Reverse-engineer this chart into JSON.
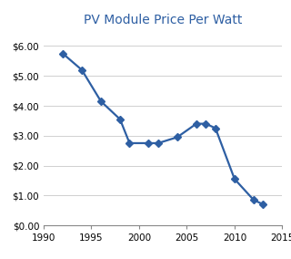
{
  "years": [
    1992,
    1994,
    1996,
    1998,
    1999,
    2001,
    2002,
    2004,
    2006,
    2007,
    2008,
    2010,
    2012,
    2013
  ],
  "prices": [
    5.75,
    5.2,
    4.15,
    3.55,
    2.75,
    2.75,
    2.75,
    2.95,
    3.4,
    3.4,
    3.25,
    1.55,
    0.85,
    0.7
  ],
  "title": "PV Module Price Per Watt",
  "title_color": "#2E5FA3",
  "title_fontsize": 10,
  "line_color": "#2E5FA3",
  "marker": "D",
  "marker_size": 4,
  "xlim": [
    1990,
    2015
  ],
  "ylim": [
    0.0,
    6.5
  ],
  "xticks": [
    1990,
    1995,
    2000,
    2005,
    2010,
    2015
  ],
  "yticks": [
    0.0,
    1.0,
    2.0,
    3.0,
    4.0,
    5.0,
    6.0
  ],
  "ytick_labels": [
    "$0.00",
    "$1.00",
    "$2.00",
    "$3.00",
    "$4.00",
    "$5.00",
    "$6.00"
  ],
  "background_color": "#ffffff",
  "grid_color": "#d0d0d0",
  "border_color": "#888888",
  "tick_fontsize": 7.5,
  "linewidth": 1.6
}
